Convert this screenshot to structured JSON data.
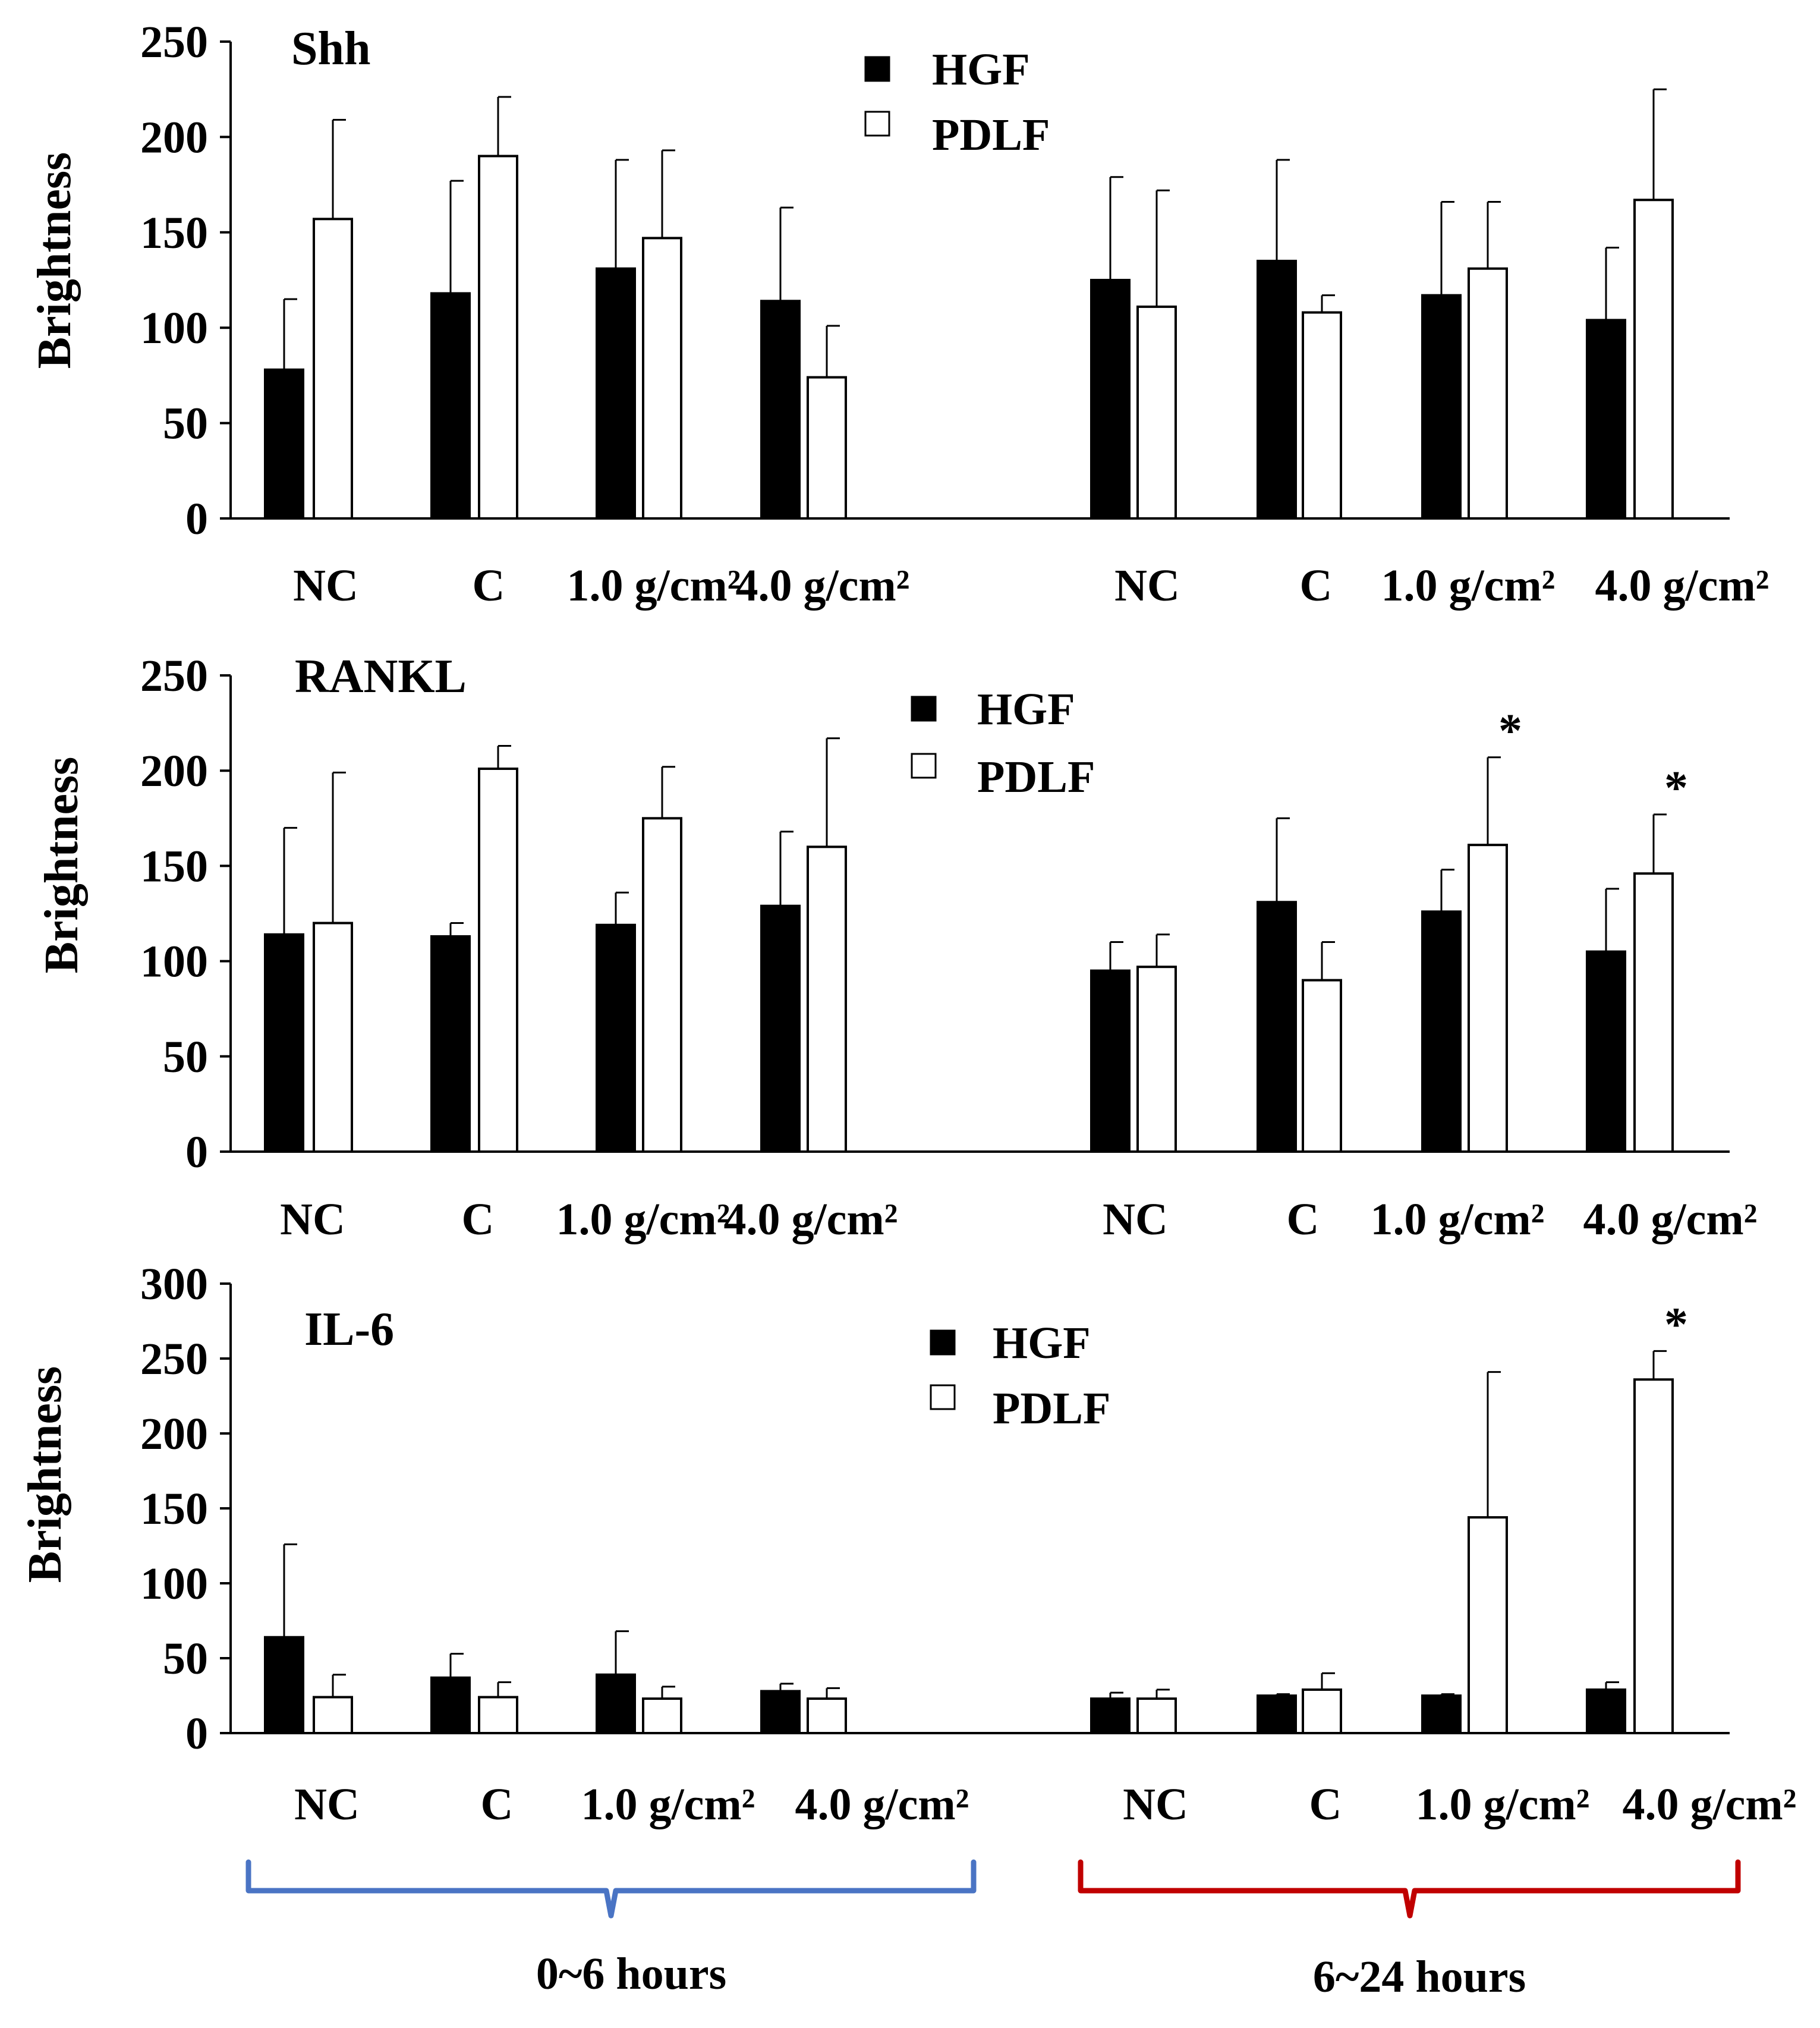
{
  "legend_labels": {
    "hgf": "HGF",
    "pdlf": "PDLF"
  },
  "colors": {
    "hgf": "#000000",
    "pdlf": "#ffffff",
    "bracket_early": "#4a74c4",
    "bracket_late": "#c00000"
  },
  "time_groups": {
    "early": "0~6 hours",
    "late": "6~24 hours"
  },
  "chart_data": [
    {
      "type": "bar",
      "title": "Shh",
      "ylabel": "Brightness",
      "ylim": [
        0,
        250
      ],
      "yticks": [
        "0",
        "50",
        "100",
        "150",
        "200",
        "250"
      ],
      "categories": [
        "NC",
        "C",
        "1.0 g/cm²",
        "4.0 g/cm²",
        "NC",
        "C",
        "1.0 g/cm²",
        "4.0 g/cm²"
      ],
      "series": [
        {
          "name": "HGF",
          "values": [
            78,
            118,
            131,
            114,
            125,
            135,
            117,
            104
          ],
          "errors": [
            37,
            59,
            57,
            49,
            54,
            53,
            49,
            38
          ]
        },
        {
          "name": "PDLF",
          "values": [
            157,
            190,
            147,
            74,
            111,
            108,
            131,
            167
          ],
          "errors": [
            52,
            31,
            46,
            27,
            61,
            9,
            35,
            58
          ]
        }
      ],
      "significance": [
        null,
        null,
        null,
        null,
        null,
        null,
        null,
        null
      ]
    },
    {
      "type": "bar",
      "title": "RANKL",
      "ylabel": "Brightness",
      "ylim": [
        0,
        250
      ],
      "yticks": [
        "0",
        "50",
        "100",
        "150",
        "200",
        "250"
      ],
      "categories": [
        "NC",
        "C",
        "1.0 g/cm²",
        "4.0 g/cm²",
        "NC",
        "C",
        "1.0 g/cm²",
        "4.0 g/cm²"
      ],
      "series": [
        {
          "name": "HGF",
          "values": [
            114,
            113,
            119,
            129,
            95,
            131,
            126,
            105
          ],
          "errors": [
            56,
            7,
            17,
            39,
            15,
            44,
            22,
            33
          ]
        },
        {
          "name": "PDLF",
          "values": [
            120,
            201,
            175,
            160,
            97,
            90,
            161,
            146
          ],
          "errors": [
            79,
            12,
            27,
            57,
            17,
            20,
            46,
            31
          ]
        }
      ],
      "significance": [
        null,
        null,
        null,
        null,
        null,
        null,
        "*",
        "*"
      ]
    },
    {
      "type": "bar",
      "title": "IL-6",
      "ylabel": "Brightness",
      "ylim": [
        0,
        300
      ],
      "yticks": [
        "0",
        "50",
        "100",
        "150",
        "200",
        "250",
        "300"
      ],
      "categories": [
        "NC",
        "C",
        "1.0 g/cm²",
        "4.0 g/cm²",
        "NC",
        "C",
        "1.0 g/cm²",
        "4.0 g/cm²"
      ],
      "series": [
        {
          "name": "HGF",
          "values": [
            64,
            37,
            39,
            28,
            23,
            25,
            25,
            29
          ],
          "errors": [
            62,
            16,
            29,
            5,
            4,
            1,
            1,
            5
          ]
        },
        {
          "name": "PDLF",
          "values": [
            24,
            24,
            23,
            23,
            23,
            29,
            144,
            236
          ],
          "errors": [
            15,
            10,
            8,
            7,
            6,
            11,
            97,
            19
          ]
        }
      ],
      "significance": [
        null,
        null,
        null,
        null,
        null,
        null,
        null,
        "*"
      ]
    }
  ]
}
